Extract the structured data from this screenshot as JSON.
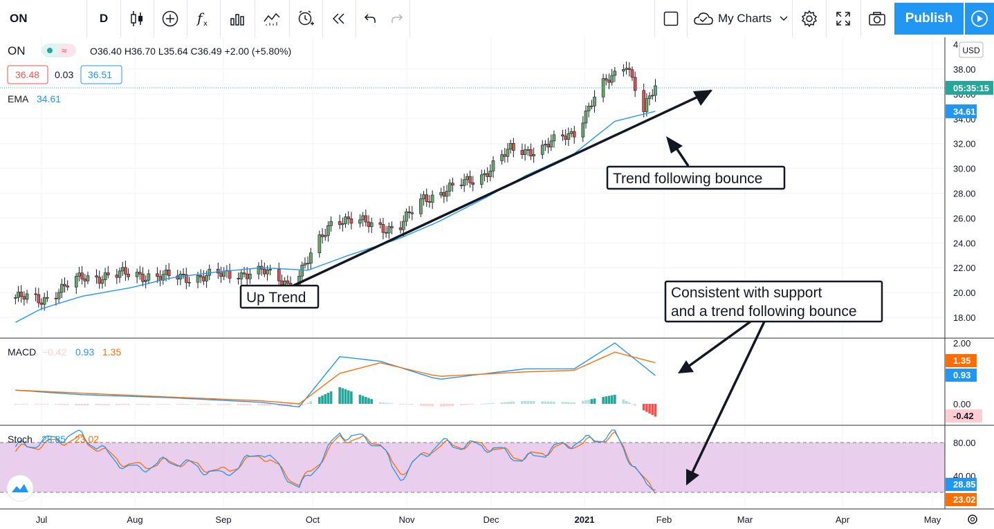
{
  "toolbar": {
    "symbol": "ON",
    "interval": "D",
    "icons": [
      "candles-icon",
      "add-icon",
      "indicators-icon",
      "templates-icon",
      "compare-icon",
      "alert-icon",
      "replay-icon",
      "undo-icon",
      "redo-icon",
      "layout-icon",
      "cloud-icon",
      "settings-icon",
      "fullscreen-icon",
      "camera-icon",
      "play-icon"
    ],
    "my_charts": "My Charts",
    "publish": "Publish"
  },
  "legend": {
    "symbol": "ON",
    "ohlc": "O36.40 H36.70 L35.64 C36.49 +2.00 (+5.80%)",
    "bid": "36.48",
    "spread": "0.03",
    "ask": "36.51",
    "ema_label": "EMA",
    "ema_value": "34.61",
    "macd_label": "MACD",
    "macd_hist": "−0.42",
    "macd_line": "0.93",
    "macd_signal": "1.35",
    "stoch_label": "Stoch",
    "stoch_k": "28.85",
    "stoch_d": "23.02"
  },
  "price_axis": {
    "currency": "USD",
    "ticks": [
      "38.00",
      "36.00",
      "34.00",
      "32.00",
      "30.00",
      "28.00",
      "26.00",
      "24.00",
      "22.00",
      "20.00",
      "18.00"
    ],
    "top_partial": "4",
    "last_price_timer": "05:35:15",
    "ema_badge": "34.61"
  },
  "macd_axis": {
    "ticks": [
      "2.00",
      "0.00"
    ],
    "badges": [
      "1.35",
      "0.93",
      "-0.42"
    ]
  },
  "stoch_axis": {
    "ticks": [
      "80.00",
      "40.00"
    ],
    "badges": [
      "28.85",
      "23.02"
    ]
  },
  "time_axis": {
    "labels": [
      "Jul",
      "Aug",
      "Sep",
      "Oct",
      "Nov",
      "Dec",
      "2021",
      "Jan",
      "Feb",
      "Mar",
      "Apr",
      "May"
    ]
  },
  "annotations": {
    "up_trend": "Up Trend",
    "bounce": "Trend following bounce",
    "support_line1": "Consistent with support",
    "support_line2": "and a trend following bounce"
  },
  "colors": {
    "up": "#26a69a",
    "down": "#ef5350",
    "ema": "#2196f3",
    "macd": "#2196f3",
    "signal": "#ff6d00",
    "stoch_band": "#e1bee7"
  },
  "chart_data": {
    "type": "line",
    "title": "",
    "price_series": {
      "name": "EMA",
      "x": [
        "2020-06-22",
        "2020-07-01",
        "2020-07-15",
        "2020-08-01",
        "2020-08-15",
        "2020-09-01",
        "2020-09-15",
        "2020-10-01",
        "2020-10-15",
        "2020-11-01",
        "2020-11-15",
        "2020-12-01",
        "2020-12-15",
        "2021-01-01",
        "2021-01-15",
        "2021-01-29"
      ],
      "values": [
        17.6,
        18.7,
        19.7,
        20.4,
        21.2,
        21.7,
        22.0,
        21.8,
        23.0,
        24.3,
        25.7,
        27.6,
        29.4,
        31.2,
        33.8,
        34.61
      ]
    },
    "price_close": {
      "name": "ON",
      "x": [
        "2020-06-22",
        "2020-07-01",
        "2020-07-15",
        "2020-08-01",
        "2020-08-15",
        "2020-09-01",
        "2020-09-15",
        "2020-09-25",
        "2020-10-01",
        "2020-10-10",
        "2020-10-20",
        "2020-11-01",
        "2020-11-10",
        "2020-11-20",
        "2020-12-01",
        "2020-12-10",
        "2020-12-20",
        "2021-01-01",
        "2021-01-10",
        "2021-01-19",
        "2021-01-25",
        "2021-01-29"
      ],
      "values": [
        19.6,
        19.4,
        21.2,
        21.5,
        21.2,
        21.4,
        21.7,
        20.7,
        22.5,
        26.1,
        25.6,
        25.1,
        27.6,
        28.4,
        29.6,
        31.5,
        31.5,
        33.0,
        36.4,
        38.6,
        34.6,
        36.49
      ]
    },
    "macd": {
      "x": [
        "2020-06-22",
        "2020-07-15",
        "2020-08-15",
        "2020-09-15",
        "2020-09-28",
        "2020-10-12",
        "2020-10-26",
        "2020-11-15",
        "2020-12-15",
        "2021-01-01",
        "2021-01-15",
        "2021-01-29"
      ],
      "macd_line": [
        0.45,
        0.3,
        0.2,
        0.05,
        -0.1,
        1.55,
        1.4,
        0.8,
        1.15,
        1.15,
        2.0,
        0.93
      ],
      "signal_line": [
        0.45,
        0.35,
        0.22,
        0.1,
        0.0,
        1.0,
        1.35,
        0.9,
        1.05,
        1.1,
        1.7,
        1.35
      ],
      "histogram_last": -0.42
    },
    "stochastic": {
      "x": [
        "2020-06-22",
        "2020-07-15",
        "2020-08-01",
        "2020-08-15",
        "2020-09-01",
        "2020-09-15",
        "2020-09-28",
        "2020-10-12",
        "2020-10-26",
        "2020-11-01",
        "2020-11-15",
        "2020-12-01",
        "2020-12-15",
        "2021-01-01",
        "2021-01-15",
        "2021-01-26",
        "2021-01-29"
      ],
      "k": [
        75,
        90,
        45,
        60,
        40,
        70,
        25,
        90,
        80,
        35,
        80,
        75,
        60,
        80,
        90,
        25,
        28.85
      ],
      "d": [
        72,
        85,
        50,
        58,
        45,
        65,
        30,
        85,
        82,
        40,
        78,
        76,
        62,
        78,
        88,
        30,
        23.02
      ],
      "bands": [
        20,
        80
      ]
    },
    "price_ylim": [
      17,
      40.5
    ],
    "macd_ylim": [
      -0.6,
      2.2
    ],
    "stoch_ylim": [
      0,
      100
    ]
  }
}
